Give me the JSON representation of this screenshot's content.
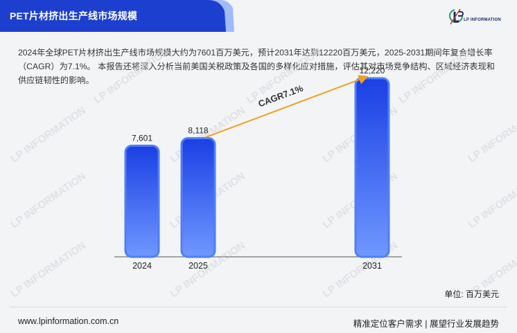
{
  "header": {
    "title": "PET片材挤出生产线市场规模",
    "logo_text": "LP INFORMATION",
    "logo_icon": "lp-information-logo-icon"
  },
  "description": "2024年全球PET片材挤出生产线市场规模大约为7601百万美元，预计2031年达到12220百万美元，2025-2031期间年复合增长率（CAGR）为7.1%。 本报告还将深入分析当前美国关税政策及各国的多样化应对措施，评估其对市场竞争结构、区域经济表现和供应链韧性的影响。",
  "watermark_text": "LP INFORMATION",
  "unit_label": "单位: 百万美元",
  "footer": {
    "url": "www.lpinformation.com.cn",
    "slogan": "精准定位客户需求 | 展望行业发展趋势"
  },
  "colors": {
    "title_bg": "#1d3fcf",
    "bar_top": "#1e40e6",
    "bar_bottom": "#6f98ff",
    "bar_edge": "#4f7ef7",
    "arrow": "#f0a020"
  },
  "chart_data": {
    "type": "bar",
    "categories": [
      "2024",
      "2025",
      "2031"
    ],
    "values": [
      7601,
      8118,
      12220
    ],
    "value_labels": [
      "7,601",
      "8,118",
      "12,220"
    ],
    "ylim": [
      0,
      13500
    ],
    "grid": false,
    "annotation": {
      "text": "CAGR7.1%",
      "from": "2025",
      "to": "2031"
    }
  }
}
